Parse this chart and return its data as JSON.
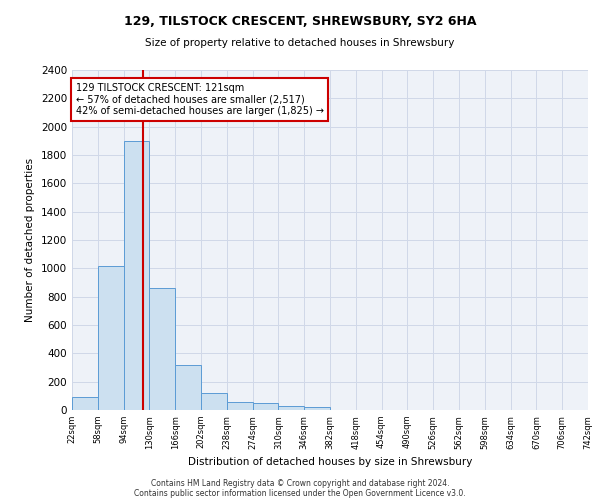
{
  "title1": "129, TILSTOCK CRESCENT, SHREWSBURY, SY2 6HA",
  "title2": "Size of property relative to detached houses in Shrewsbury",
  "xlabel": "Distribution of detached houses by size in Shrewsbury",
  "ylabel": "Number of detached properties",
  "footer1": "Contains HM Land Registry data © Crown copyright and database right 2024.",
  "footer2": "Contains public sector information licensed under the Open Government Licence v3.0.",
  "bar_color": "#cce0f0",
  "bar_edge_color": "#5b9bd5",
  "annotation_line_color": "#cc0000",
  "annotation_box_color": "#cc0000",
  "annotation_text": "129 TILSTOCK CRESCENT: 121sqm\n← 57% of detached houses are smaller (2,517)\n42% of semi-detached houses are larger (1,825) →",
  "property_size": 121,
  "ylim": [
    0,
    2400
  ],
  "yticks": [
    0,
    200,
    400,
    600,
    800,
    1000,
    1200,
    1400,
    1600,
    1800,
    2000,
    2200,
    2400
  ],
  "bin_edges": [
    22,
    58,
    94,
    130,
    166,
    202,
    238,
    274,
    310,
    346,
    382,
    418,
    454,
    490,
    526,
    562,
    598,
    634,
    670,
    706,
    742
  ],
  "bar_heights": [
    92,
    1020,
    1900,
    860,
    315,
    120,
    58,
    50,
    30,
    20,
    0,
    0,
    0,
    0,
    0,
    0,
    0,
    0,
    0,
    0
  ],
  "tick_labels": [
    "22sqm",
    "58sqm",
    "94sqm",
    "130sqm",
    "166sqm",
    "202sqm",
    "238sqm",
    "274sqm",
    "310sqm",
    "346sqm",
    "382sqm",
    "418sqm",
    "454sqm",
    "490sqm",
    "526sqm",
    "562sqm",
    "598sqm",
    "634sqm",
    "670sqm",
    "706sqm",
    "742sqm"
  ],
  "grid_color": "#d0d8e8",
  "background_color": "#eef2f8"
}
